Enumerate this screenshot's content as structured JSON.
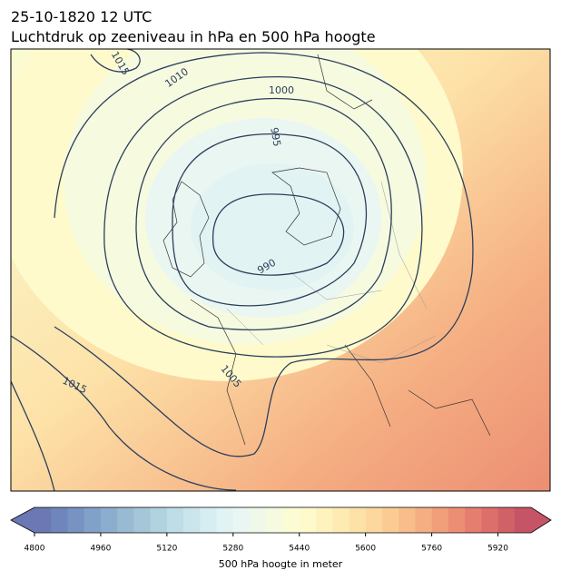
{
  "header": {
    "title": "25-10-1820 12 UTC",
    "subtitle": "Luchtdruk op zeeniveau in hPa en 500 hPa hoogte"
  },
  "isobar_labels": [
    1015,
    1010,
    1000,
    995,
    990,
    1005,
    1015
  ],
  "colorbar": {
    "label": "500 hPa hoogte in meter",
    "lim": [
      4800,
      6000
    ],
    "ticks": [
      4800,
      4960,
      5120,
      5280,
      5440,
      5600,
      5760,
      5920
    ],
    "colors": [
      "#6b78b4",
      "#6f86bc",
      "#7893c2",
      "#82a1c9",
      "#8caece",
      "#98bad3",
      "#a5c6d8",
      "#b1d2df",
      "#bfdde6",
      "#cbe5ec",
      "#d6edf1",
      "#e2f3f3",
      "#eaf6f2",
      "#f0f8ea",
      "#f6fadf",
      "#fbfcd3",
      "#fefacb",
      "#fef3bf",
      "#feebb3",
      "#fde2a8",
      "#fcd89e",
      "#fbcb94",
      "#f8bd8b",
      "#f5ae82",
      "#f19e7a",
      "#ec8e73",
      "#e57e6e",
      "#dc6f6a",
      "#d06167",
      "#c55466"
    ]
  }
}
